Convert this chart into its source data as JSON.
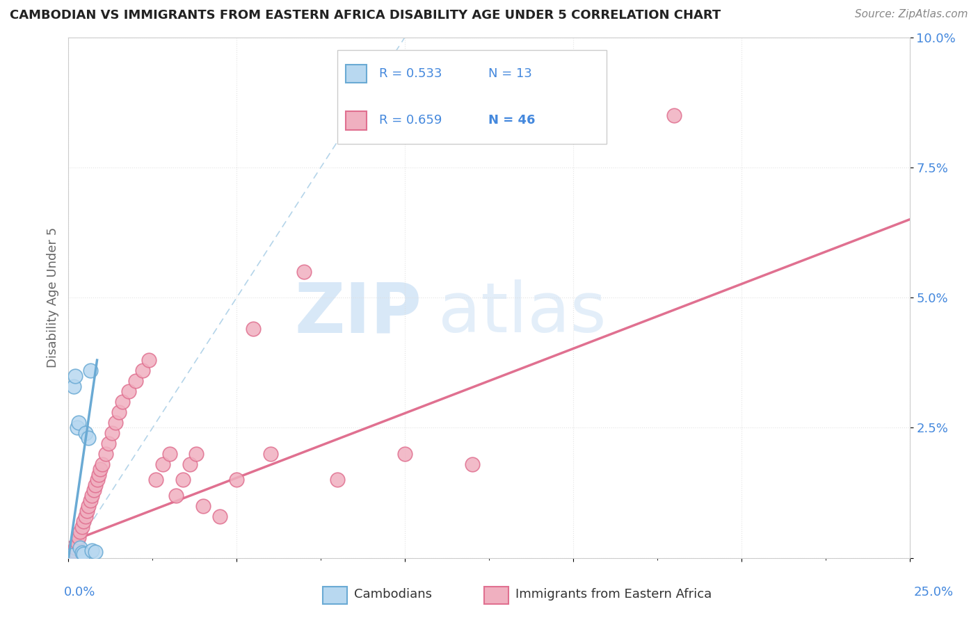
{
  "title": "CAMBODIAN VS IMMIGRANTS FROM EASTERN AFRICA DISABILITY AGE UNDER 5 CORRELATION CHART",
  "source": "Source: ZipAtlas.com",
  "ylabel": "Disability Age Under 5",
  "xlim": [
    0.0,
    25.0
  ],
  "ylim": [
    0.0,
    10.0
  ],
  "ytick_vals": [
    0.0,
    2.5,
    5.0,
    7.5,
    10.0
  ],
  "ytick_labels": [
    "",
    "2.5%",
    "5.0%",
    "7.5%",
    "10.0%"
  ],
  "background_color": "#ffffff",
  "cambodian_color": "#6aaad4",
  "cambodian_fill": "#b8d8f0",
  "cambodian_R": "0.533",
  "cambodian_N": "13",
  "eastern_africa_color": "#e07090",
  "eastern_africa_fill": "#f0b0c0",
  "eastern_africa_R": "0.659",
  "eastern_africa_N": "46",
  "cambodian_x": [
    0.1,
    0.15,
    0.2,
    0.25,
    0.3,
    0.35,
    0.4,
    0.45,
    0.5,
    0.6,
    0.65,
    0.7,
    0.8
  ],
  "cambodian_y": [
    0.05,
    3.3,
    3.5,
    2.5,
    2.6,
    0.2,
    0.1,
    0.08,
    2.4,
    2.3,
    3.6,
    0.15,
    0.12
  ],
  "cam_line_x": [
    0.0,
    0.85
  ],
  "cam_line_y": [
    0.0,
    3.8
  ],
  "diag_line_x": [
    0.0,
    10.0
  ],
  "diag_line_y": [
    0.0,
    10.0
  ],
  "ea_x": [
    0.1,
    0.15,
    0.2,
    0.25,
    0.3,
    0.35,
    0.4,
    0.45,
    0.5,
    0.55,
    0.6,
    0.65,
    0.7,
    0.75,
    0.8,
    0.85,
    0.9,
    0.95,
    1.0,
    1.1,
    1.2,
    1.3,
    1.4,
    1.5,
    1.6,
    1.8,
    2.0,
    2.2,
    2.4,
    2.6,
    2.8,
    3.0,
    3.2,
    3.4,
    3.6,
    3.8,
    4.0,
    4.5,
    5.0,
    5.5,
    6.0,
    7.0,
    8.0,
    10.0,
    12.0,
    18.0
  ],
  "ea_y": [
    0.1,
    0.15,
    0.2,
    0.3,
    0.4,
    0.5,
    0.6,
    0.7,
    0.8,
    0.9,
    1.0,
    1.1,
    1.2,
    1.3,
    1.4,
    1.5,
    1.6,
    1.7,
    1.8,
    2.0,
    2.2,
    2.4,
    2.6,
    2.8,
    3.0,
    3.2,
    3.4,
    3.6,
    3.8,
    1.5,
    1.8,
    2.0,
    1.2,
    1.5,
    1.8,
    2.0,
    1.0,
    0.8,
    1.5,
    4.4,
    2.0,
    5.5,
    1.5,
    2.0,
    1.8,
    8.5
  ],
  "ea_line_x": [
    0.0,
    25.0
  ],
  "ea_line_y": [
    0.3,
    6.5
  ],
  "legend_cambodian_label": "Cambodians",
  "legend_eastern_label": "Immigrants from Eastern Africa",
  "title_color": "#222222",
  "source_color": "#888888",
  "axis_color": "#4488dd",
  "tick_color": "#4488dd",
  "ylabel_color": "#666666",
  "grid_color": "#dddddd",
  "watermark_zip_color": "#c8dff5",
  "watermark_atlas_color": "#c8dff5"
}
